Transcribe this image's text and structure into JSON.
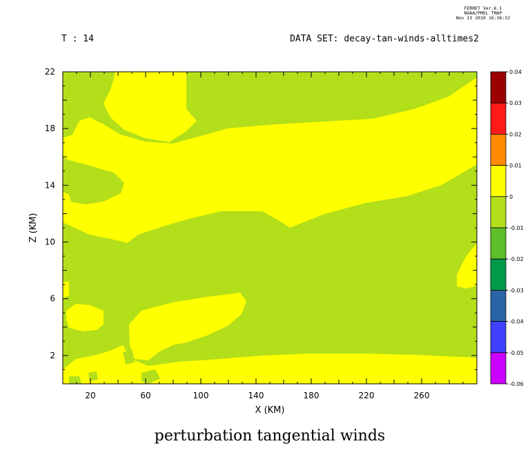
{
  "header": {
    "ferret_lines": [
      "FERRET  Ver.6.1",
      "NOAA/PMEL TMAP",
      "Nov 13 2010 16:36:32"
    ],
    "time_label": "T : 14",
    "dataset_label": "DATA SET: decay-tan-winds-alltimes2"
  },
  "chart_data": {
    "type": "heatmap",
    "title": "perturbation tangential winds",
    "xlabel": "X (KM)",
    "ylabel": "Z (KM)",
    "xlim": [
      0,
      300
    ],
    "ylim": [
      0,
      22
    ],
    "x_ticks": [
      20,
      60,
      100,
      140,
      180,
      220,
      260
    ],
    "y_ticks": [
      2,
      6,
      10,
      14,
      18,
      22
    ],
    "colorbar": {
      "levels": [
        0.04,
        0.03,
        0.02,
        0.01,
        0,
        -0.01,
        -0.02,
        -0.03,
        -0.04,
        -0.05,
        -0.06
      ],
      "colors": [
        "#9b0000",
        "#ff1a1a",
        "#ff8a00",
        "#ffff00",
        "#b3de1a",
        "#5cbf2a",
        "#009a4a",
        "#2a66a6",
        "#4040ff",
        "#cc00ff"
      ]
    },
    "regions": [
      {
        "range": "-0.01 to 0",
        "color": "#b3de1a",
        "role": "background"
      },
      {
        "range": "0 to 0.01",
        "color": "#ffff00",
        "role": "positive perturbation regions"
      }
    ]
  }
}
